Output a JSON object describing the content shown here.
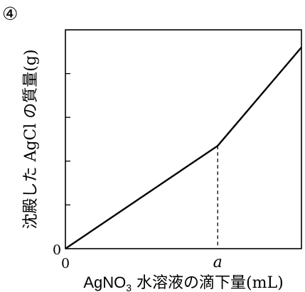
{
  "chart_data": {
    "type": "line",
    "panel_label": "④",
    "ylabel": "沈殿した AgCl の質量(g)",
    "xlabel": {
      "prefix": "AgNO",
      "subscript": "3",
      "suffix": " 水溶液の滴下量(mL)"
    },
    "origin_x_label": "0",
    "origin_y_label": "0",
    "x_marker": {
      "label": "a",
      "x": 1.0
    },
    "xlim": [
      0,
      1.55
    ],
    "ylim": [
      0,
      1.0
    ],
    "y_ticks": [
      0.2,
      0.4,
      0.6,
      0.8
    ],
    "series": [
      {
        "x": [
          0,
          1.0,
          1.55
        ],
        "y": [
          0,
          0.47,
          0.92
        ]
      }
    ],
    "grid": false,
    "legend": "none"
  }
}
